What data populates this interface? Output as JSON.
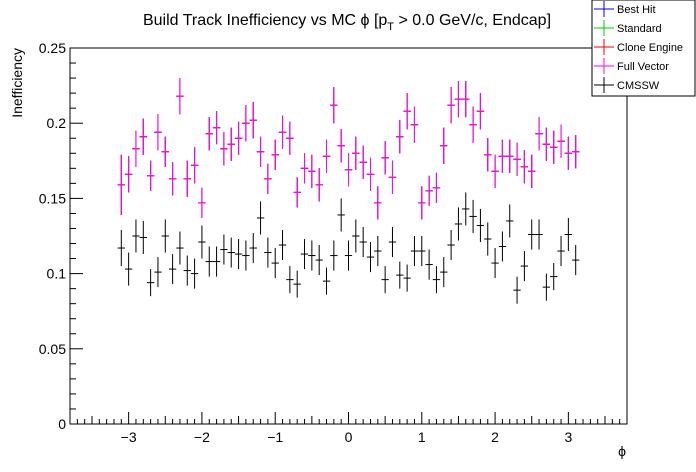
{
  "chart_data": {
    "type": "scatter",
    "title_main": "Build Track Inefficiency vs MC ",
    "title_phi": "ϕ",
    "title_bracket": " [p",
    "title_sub": "T",
    "title_rest": " > 0.0 GeV/c, Endcap]",
    "xlabel": "ϕ",
    "ylabel": "Inefficiency",
    "xlim": [
      -3.8,
      3.8
    ],
    "ylim": [
      0,
      0.25
    ],
    "xticks": [
      -3,
      -2,
      -1,
      0,
      1,
      2,
      3
    ],
    "xtick_labels": [
      "−3",
      "−2",
      "−1",
      "0",
      "1",
      "2",
      "3"
    ],
    "yticks": [
      0,
      0.05,
      0.1,
      0.15,
      0.2,
      0.25
    ],
    "ytick_labels": [
      "0",
      "0.05",
      "0.1",
      "0.15",
      "0.2",
      "0.25"
    ],
    "x": [
      -3.1,
      -3.0,
      -2.9,
      -2.8,
      -2.7,
      -2.6,
      -2.5,
      -2.4,
      -2.3,
      -2.2,
      -2.1,
      -2.0,
      -1.9,
      -1.8,
      -1.7,
      -1.6,
      -1.5,
      -1.4,
      -1.3,
      -1.2,
      -1.1,
      -1.0,
      -0.9,
      -0.8,
      -0.7,
      -0.6,
      -0.5,
      -0.4,
      -0.3,
      -0.2,
      -0.1,
      0.0,
      0.1,
      0.2,
      0.3,
      0.4,
      0.5,
      0.6,
      0.7,
      0.8,
      0.9,
      1.0,
      1.1,
      1.2,
      1.3,
      1.4,
      1.5,
      1.6,
      1.7,
      1.8,
      1.9,
      2.0,
      2.1,
      2.2,
      2.3,
      2.4,
      2.5,
      2.6,
      2.7,
      2.8,
      2.9,
      3.0,
      3.1
    ],
    "x_halfwidth": 0.05,
    "legend_position": "top-right",
    "series": [
      {
        "name": "Best Hit",
        "color": "#0000ff",
        "values": [
          0.159,
          0.166,
          0.183,
          0.191,
          0.165,
          0.194,
          0.181,
          0.163,
          0.218,
          0.163,
          0.172,
          0.147,
          0.193,
          0.197,
          0.183,
          0.186,
          0.19,
          0.2,
          0.202,
          0.181,
          0.163,
          0.179,
          0.194,
          0.19,
          0.154,
          0.17,
          0.168,
          0.159,
          0.178,
          0.212,
          0.185,
          0.169,
          0.18,
          0.174,
          0.166,
          0.147,
          0.177,
          0.164,
          0.191,
          0.208,
          0.199,
          0.147,
          0.155,
          0.157,
          0.185,
          0.212,
          0.216,
          0.216,
          0.199,
          0.208,
          0.179,
          0.168,
          0.178,
          0.178,
          0.176,
          0.171,
          0.168,
          0.193,
          0.186,
          0.184,
          0.188,
          0.18,
          0.181
        ]
      },
      {
        "name": "Standard",
        "color": "#00cc00",
        "values": [
          0.159,
          0.166,
          0.183,
          0.191,
          0.165,
          0.194,
          0.181,
          0.163,
          0.218,
          0.163,
          0.172,
          0.147,
          0.193,
          0.197,
          0.183,
          0.186,
          0.19,
          0.2,
          0.202,
          0.181,
          0.163,
          0.179,
          0.194,
          0.19,
          0.154,
          0.17,
          0.168,
          0.159,
          0.178,
          0.212,
          0.185,
          0.169,
          0.18,
          0.174,
          0.166,
          0.147,
          0.177,
          0.164,
          0.191,
          0.208,
          0.199,
          0.147,
          0.155,
          0.157,
          0.185,
          0.212,
          0.216,
          0.216,
          0.199,
          0.208,
          0.179,
          0.168,
          0.178,
          0.178,
          0.176,
          0.171,
          0.168,
          0.193,
          0.186,
          0.184,
          0.188,
          0.18,
          0.181
        ]
      },
      {
        "name": "Clone Engine",
        "color": "#ff0000",
        "values": [
          0.159,
          0.166,
          0.183,
          0.191,
          0.165,
          0.194,
          0.181,
          0.163,
          0.218,
          0.163,
          0.172,
          0.147,
          0.193,
          0.197,
          0.183,
          0.186,
          0.19,
          0.2,
          0.202,
          0.181,
          0.163,
          0.179,
          0.194,
          0.19,
          0.154,
          0.17,
          0.168,
          0.159,
          0.178,
          0.212,
          0.185,
          0.169,
          0.18,
          0.174,
          0.166,
          0.147,
          0.177,
          0.164,
          0.191,
          0.208,
          0.199,
          0.147,
          0.155,
          0.157,
          0.185,
          0.212,
          0.216,
          0.216,
          0.199,
          0.208,
          0.179,
          0.168,
          0.178,
          0.178,
          0.176,
          0.171,
          0.168,
          0.193,
          0.186,
          0.184,
          0.188,
          0.18,
          0.181
        ]
      },
      {
        "name": "Full Vector",
        "color": "#ff00ff",
        "values": [
          0.159,
          0.166,
          0.183,
          0.191,
          0.165,
          0.194,
          0.181,
          0.163,
          0.218,
          0.163,
          0.172,
          0.147,
          0.193,
          0.197,
          0.183,
          0.186,
          0.19,
          0.2,
          0.202,
          0.181,
          0.163,
          0.179,
          0.194,
          0.19,
          0.154,
          0.17,
          0.168,
          0.159,
          0.178,
          0.212,
          0.185,
          0.169,
          0.18,
          0.174,
          0.166,
          0.147,
          0.177,
          0.164,
          0.191,
          0.208,
          0.199,
          0.147,
          0.155,
          0.157,
          0.185,
          0.212,
          0.216,
          0.216,
          0.199,
          0.208,
          0.179,
          0.168,
          0.178,
          0.178,
          0.176,
          0.171,
          0.168,
          0.193,
          0.186,
          0.184,
          0.188,
          0.18,
          0.181
        ]
      },
      {
        "name": "CMSSW",
        "color": "#000000",
        "values": [
          0.117,
          0.103,
          0.125,
          0.124,
          0.094,
          0.101,
          0.125,
          0.103,
          0.117,
          0.102,
          0.1,
          0.121,
          0.108,
          0.108,
          0.116,
          0.114,
          0.113,
          0.112,
          0.117,
          0.137,
          0.114,
          0.107,
          0.119,
          0.096,
          0.093,
          0.113,
          0.112,
          0.109,
          0.095,
          0.112,
          0.139,
          0.112,
          0.125,
          0.121,
          0.111,
          0.115,
          0.096,
          0.121,
          0.099,
          0.097,
          0.115,
          0.115,
          0.106,
          0.096,
          0.101,
          0.119,
          0.133,
          0.143,
          0.138,
          0.132,
          0.123,
          0.107,
          0.118,
          0.135,
          0.089,
          0.105,
          0.126,
          0.126,
          0.091,
          0.098,
          0.115,
          0.126,
          0.109
        ]
      }
    ],
    "errors": {
      "ineff_upper": [
        0.02,
        0.012,
        0.012,
        0.012,
        0.01,
        0.012,
        0.01,
        0.011,
        0.012,
        0.012,
        0.012,
        0.01,
        0.011,
        0.011,
        0.011,
        0.011,
        0.011,
        0.012,
        0.012,
        0.01,
        0.01,
        0.01,
        0.011,
        0.011,
        0.01,
        0.01,
        0.011,
        0.011,
        0.011,
        0.012,
        0.011,
        0.011,
        0.011,
        0.011,
        0.011,
        0.011,
        0.011,
        0.011,
        0.011,
        0.012,
        0.012,
        0.011,
        0.01,
        0.01,
        0.012,
        0.012,
        0.012,
        0.012,
        0.012,
        0.012,
        0.011,
        0.011,
        0.011,
        0.011,
        0.011,
        0.011,
        0.011,
        0.011,
        0.011,
        0.011,
        0.011,
        0.011,
        0.011
      ],
      "cmssw_upper": [
        0.012,
        0.011,
        0.011,
        0.011,
        0.009,
        0.01,
        0.011,
        0.01,
        0.011,
        0.01,
        0.01,
        0.011,
        0.01,
        0.01,
        0.01,
        0.01,
        0.01,
        0.01,
        0.01,
        0.011,
        0.01,
        0.01,
        0.01,
        0.009,
        0.009,
        0.01,
        0.01,
        0.01,
        0.009,
        0.01,
        0.011,
        0.01,
        0.011,
        0.01,
        0.01,
        0.01,
        0.009,
        0.01,
        0.009,
        0.009,
        0.01,
        0.01,
        0.01,
        0.009,
        0.01,
        0.01,
        0.011,
        0.011,
        0.011,
        0.011,
        0.011,
        0.01,
        0.01,
        0.011,
        0.009,
        0.01,
        0.01,
        0.01,
        0.009,
        0.009,
        0.01,
        0.011,
        0.01
      ]
    }
  }
}
